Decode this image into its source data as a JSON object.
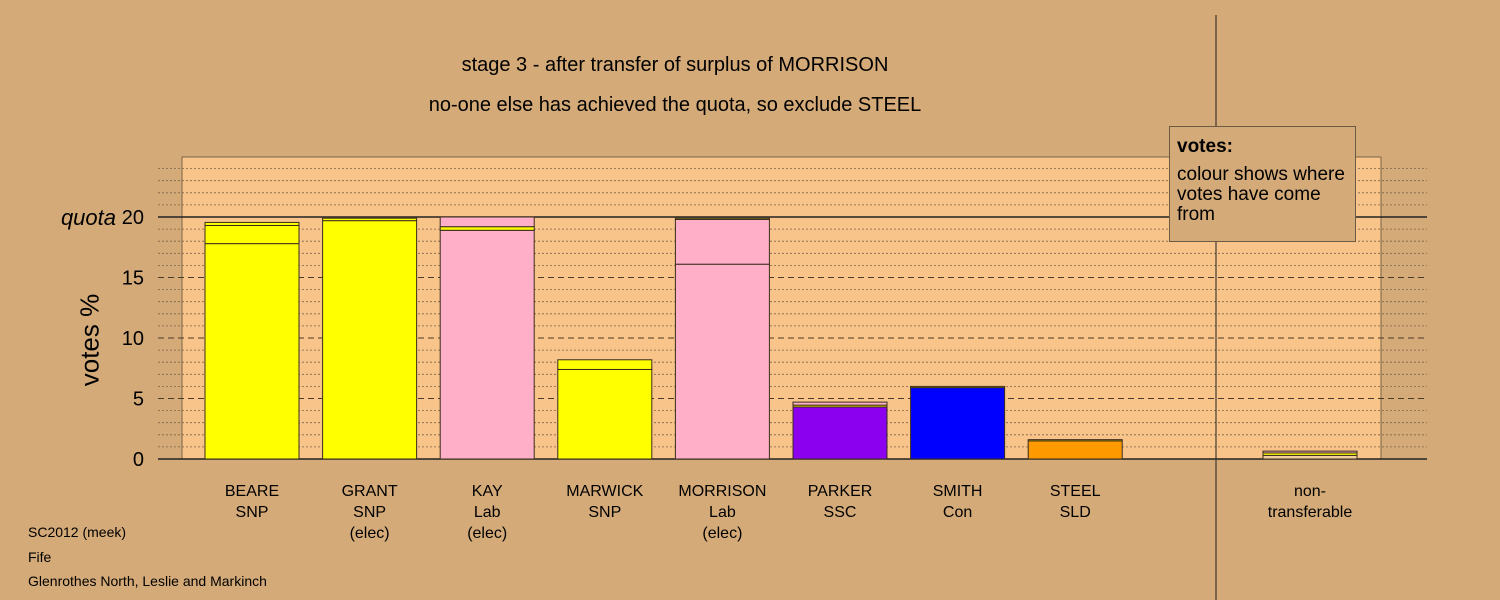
{
  "title_line1": "stage 3 - after transfer of surplus of MORRISON",
  "title_line2": "no-one else has achieved the quota, so exclude STEEL",
  "legend": {
    "heading": "votes:",
    "text": "colour shows where votes have come from"
  },
  "footer": {
    "line1": "SC2012 (meek)",
    "line2": "Fife",
    "line3": "Glenrothes North, Leslie and Markinch"
  },
  "colors": {
    "SNP": "#ffff00",
    "Lab": "#ffb0c8",
    "SSC": "#8b00ee",
    "Con": "#0000ff",
    "SLD": "#ff9900",
    "nontransferable": "#f3cf9f"
  },
  "chart_data": {
    "type": "bar",
    "stacked": true,
    "ylabel": "votes %",
    "ylim": [
      0,
      25
    ],
    "yticks": [
      0,
      5,
      10,
      15,
      20
    ],
    "quota": 20,
    "quota_label": "quota",
    "grid": true,
    "legend_placement": "top-right",
    "bars": [
      {
        "labels": [
          "BEARE",
          "SNP"
        ],
        "segments": [
          {
            "value": 17.8,
            "color": "#ffff00"
          },
          {
            "value": 1.5,
            "color": "#ffff00"
          },
          {
            "value": 0.25,
            "color": "#ffff00"
          }
        ]
      },
      {
        "labels": [
          "GRANT",
          "SNP",
          "(elec)"
        ],
        "segments": [
          {
            "value": 19.7,
            "color": "#ffff00"
          },
          {
            "value": 0.2,
            "color": "#ffff00"
          }
        ]
      },
      {
        "labels": [
          "KAY",
          "Lab",
          "(elec)"
        ],
        "segments": [
          {
            "value": 18.9,
            "color": "#ffb0c8"
          },
          {
            "value": 0.3,
            "color": "#ffff00"
          },
          {
            "value": 0.8,
            "color": "#ffb0c8"
          }
        ]
      },
      {
        "labels": [
          "MARWICK",
          "SNP"
        ],
        "segments": [
          {
            "value": 7.4,
            "color": "#ffff00"
          },
          {
            "value": 0.8,
            "color": "#ffff00"
          }
        ]
      },
      {
        "labels": [
          "MORRISON",
          "Lab",
          "(elec)"
        ],
        "segments": [
          {
            "value": 16.1,
            "color": "#ffb0c8"
          },
          {
            "value": 3.7,
            "color": "#ffb0c8"
          },
          {
            "value": 0.1,
            "color": "#ffff00"
          }
        ]
      },
      {
        "labels": [
          "PARKER",
          "SSC"
        ],
        "segments": [
          {
            "value": 4.3,
            "color": "#8b00ee"
          },
          {
            "value": 0.15,
            "color": "#ffff00"
          },
          {
            "value": 0.25,
            "color": "#ffb0c8"
          }
        ]
      },
      {
        "labels": [
          "SMITH",
          "Con"
        ],
        "segments": [
          {
            "value": 5.9,
            "color": "#0000ff"
          },
          {
            "value": 0.1,
            "color": "#ffff00"
          }
        ]
      },
      {
        "labels": [
          "STEEL",
          "SLD"
        ],
        "segments": [
          {
            "value": 1.5,
            "color": "#ff9900"
          },
          {
            "value": 0.1,
            "color": "#ffff00"
          }
        ]
      },
      {
        "labels": [
          "non-",
          "transferable"
        ],
        "separate": true,
        "segments": [
          {
            "value": 0.3,
            "color": "#f3cf9f"
          },
          {
            "value": 0.2,
            "color": "#ffff00"
          },
          {
            "value": 0.15,
            "color": "#ffb0c8"
          }
        ]
      }
    ]
  }
}
